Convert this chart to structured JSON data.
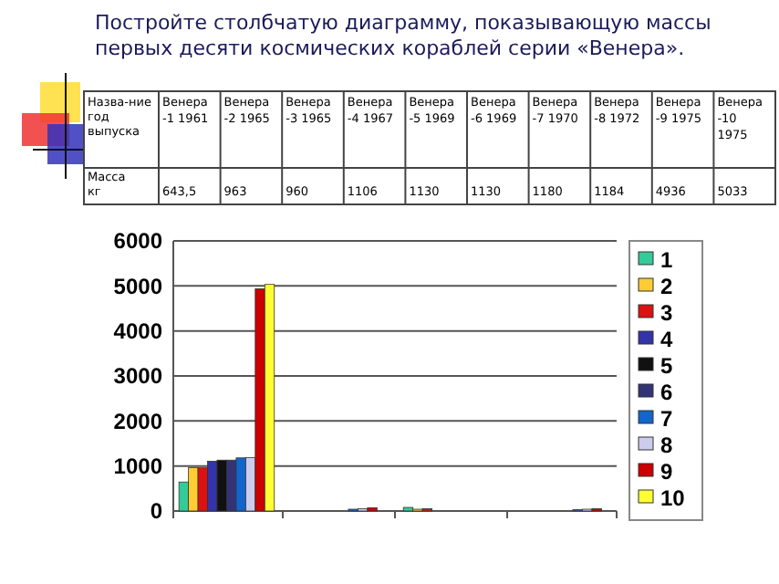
{
  "chart_data": {
    "type": "bar",
    "title": "Постройте столбчатую диаграмму, показывающую массы первых десяти космических кораблей серии «Венера».",
    "annotations": [
      "Назва-ние год выпуска",
      "Масса кг",
      "Венера -1 1961",
      "Венера -2 1965",
      "Венера -3 1965",
      "Венера -4 1967",
      "Венера -5 1969",
      "Венера -6 1969",
      "Венера -7 1970",
      "Венера -8 1972",
      "Венера -9 1975",
      "Венера -10 1975",
      "643,5",
      "963",
      "960",
      "1106",
      "1130",
      "1130",
      "1180",
      "1184",
      "4936",
      "5033"
    ],
    "categories": [
      null,
      null,
      null,
      null
    ],
    "series": [
      {
        "name": "1",
        "color": "#33cc99",
        "values": [
          643.5,
          0,
          80,
          0
        ]
      },
      {
        "name": "2",
        "color": "#ffcc33",
        "values": [
          963,
          0,
          40,
          0
        ]
      },
      {
        "name": "3",
        "color": "#dd1111",
        "values": [
          960,
          0,
          50,
          0
        ]
      },
      {
        "name": "4",
        "color": "#3333aa",
        "values": [
          1106,
          0,
          0,
          0
        ]
      },
      {
        "name": "5",
        "color": "#111111",
        "values": [
          1130,
          0,
          0,
          0
        ]
      },
      {
        "name": "6",
        "color": "#333377",
        "values": [
          1130,
          null,
          0,
          null
        ]
      },
      {
        "name": "7",
        "color": "#1166cc",
        "values": [
          1180,
          40,
          0,
          30
        ]
      },
      {
        "name": "8",
        "color": "#ccccee",
        "values": [
          1184,
          50,
          0,
          40
        ]
      },
      {
        "name": "9",
        "color": "#cc0000",
        "values": [
          4936,
          70,
          0,
          50
        ]
      },
      {
        "name": "10",
        "color": "#ffff33",
        "values": [
          5033,
          0,
          0,
          0
        ]
      }
    ],
    "ylim": [
      0,
      6000
    ],
    "yticks": [
      0,
      1000,
      2000,
      3000,
      4000,
      5000,
      6000
    ],
    "grid": "y",
    "legend": "right"
  }
}
